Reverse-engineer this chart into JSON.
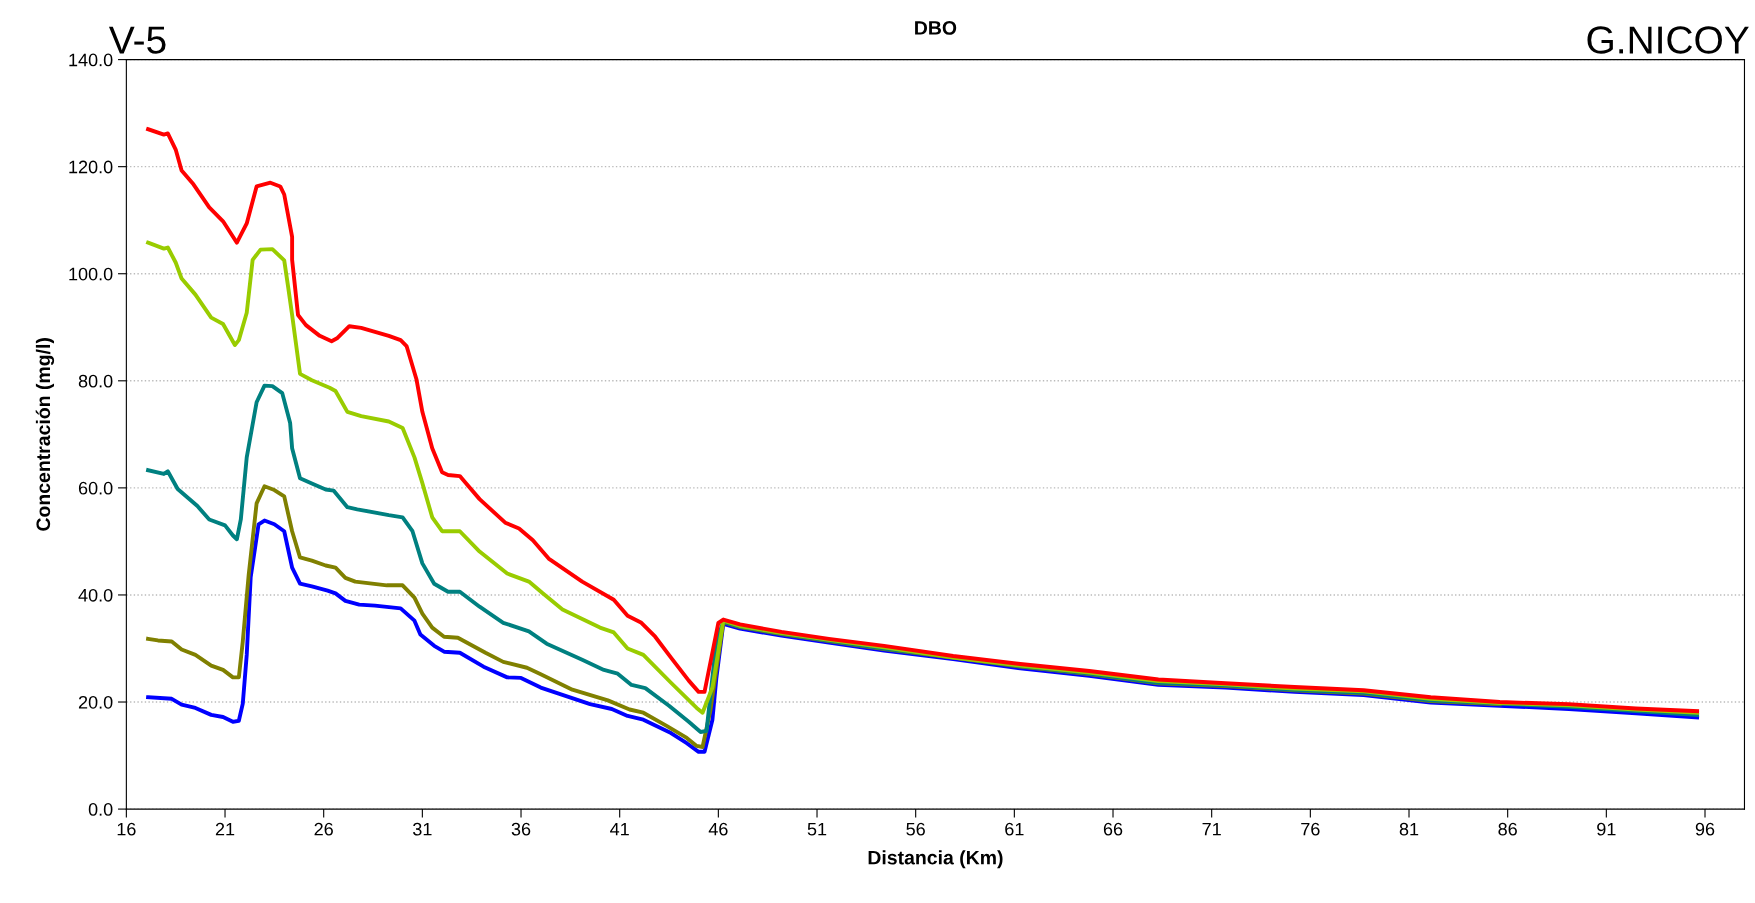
{
  "chart_data": {
    "type": "line",
    "title": "DBO",
    "xlabel": "Distancia (Km)",
    "ylabel": "Concentración (mg/l)",
    "annotations": [
      "V-5",
      "G.NICOY"
    ],
    "xlim": [
      16,
      98
    ],
    "xticks": [
      16,
      21,
      26,
      31,
      36,
      41,
      46,
      51,
      56,
      61,
      66,
      71,
      76,
      81,
      86,
      91,
      96
    ],
    "ylim": [
      0,
      140
    ],
    "yticks": [
      {
        "value": 0,
        "label": "0.0"
      },
      {
        "value": 20,
        "label": "20.0"
      },
      {
        "value": 40,
        "label": "40.0"
      },
      {
        "value": 60,
        "label": "60.0"
      },
      {
        "value": 80,
        "label": "80.0"
      },
      {
        "value": 100,
        "label": "100.0"
      },
      {
        "value": 120,
        "label": "120.0"
      },
      {
        "value": 140,
        "label": "140.0"
      }
    ],
    "grid": "y",
    "legend": false,
    "marker": "none",
    "line_style": "solid",
    "series": [
      {
        "color": "#0000ff",
        "x": [
          17.1,
          18.3,
          18.8,
          19.5,
          20.3,
          20.9,
          21.4,
          21.7,
          21.9,
          22.1,
          22.3,
          22.7,
          23.0,
          23.5,
          24.0,
          24.4,
          24.8,
          25.4,
          26.2,
          26.6,
          27.1,
          27.8,
          28.6,
          29.9,
          30.6,
          30.9,
          31.6,
          32.1,
          32.9,
          34.1,
          35.3,
          36.0,
          37.0,
          39.5,
          40.6,
          41.4,
          42.2,
          43.6,
          44.4,
          45.0,
          45.3,
          45.7,
          45.9,
          46.25,
          47.1,
          49.2,
          51.6,
          54.4,
          57.9,
          61.3,
          64.8,
          68.3,
          71.7,
          75.2,
          78.7,
          82.1,
          85.6,
          89.1,
          92.5,
          95.6
        ],
        "values": [
          20.9,
          20.6,
          19.5,
          18.9,
          17.6,
          17.2,
          16.3,
          16.5,
          19.7,
          28.8,
          43.3,
          53.2,
          53.9,
          53.2,
          51.9,
          45.1,
          42.1,
          41.6,
          40.8,
          40.3,
          38.9,
          38.2,
          38.0,
          37.5,
          35.2,
          32.6,
          30.5,
          29.4,
          29.2,
          26.6,
          24.6,
          24.5,
          22.7,
          19.6,
          18.7,
          17.4,
          16.7,
          14.2,
          12.3,
          10.7,
          10.7,
          16.7,
          24.5,
          34.6,
          33.7,
          32.4,
          31.1,
          29.6,
          28.0,
          26.3,
          24.9,
          23.2,
          22.7,
          21.9,
          21.3,
          19.9,
          19.3,
          18.7,
          17.9,
          17.1
        ]
      },
      {
        "color": "#808000",
        "x": [
          17.1,
          17.6,
          18.3,
          18.8,
          19.5,
          20.3,
          20.9,
          21.4,
          21.7,
          21.9,
          22.2,
          22.6,
          23.0,
          23.5,
          24.0,
          24.4,
          24.8,
          25.4,
          26.1,
          26.6,
          27.1,
          27.6,
          29.2,
          30.0,
          30.6,
          31.0,
          31.5,
          32.1,
          32.8,
          34.2,
          35.1,
          36.3,
          37.0,
          38.6,
          40.4,
          41.5,
          42.2,
          43.4,
          44.4,
          44.9,
          45.2,
          45.6,
          46.25,
          47.1,
          49.2,
          51.6,
          54.4,
          57.9,
          61.3,
          64.8,
          68.3,
          71.7,
          75.2,
          78.7,
          82.1,
          85.6
        ],
        "values": [
          31.8,
          31.5,
          31.3,
          29.8,
          28.8,
          26.8,
          26.0,
          24.6,
          24.6,
          31.3,
          43.8,
          57.1,
          60.3,
          59.6,
          58.4,
          51.9,
          47.0,
          46.4,
          45.5,
          45.1,
          43.2,
          42.5,
          41.8,
          41.8,
          39.5,
          36.5,
          33.9,
          32.2,
          32.0,
          29.2,
          27.5,
          26.4,
          25.2,
          22.3,
          20.3,
          18.6,
          18.0,
          15.5,
          13.3,
          11.8,
          11.6,
          18.5,
          34.9,
          34.0,
          32.7,
          31.4,
          29.9,
          28.3,
          26.6,
          25.2,
          23.5,
          23.0,
          22.2,
          21.6,
          20.2,
          19.6
        ]
      },
      {
        "color": "#008080",
        "x": [
          17.1,
          17.9,
          18.1,
          18.6,
          19.6,
          20.2,
          21.0,
          21.4,
          21.6,
          21.8,
          22.1,
          22.6,
          23.0,
          23.4,
          23.9,
          24.3,
          24.4,
          24.8,
          25.4,
          26.1,
          26.5,
          27.2,
          27.7,
          29.3,
          30.0,
          30.5,
          31.0,
          31.6,
          32.3,
          32.9,
          33.9,
          35.1,
          36.4,
          37.3,
          39.1,
          40.2,
          40.9,
          41.6,
          42.3,
          43.5,
          44.5,
          45.1,
          45.4,
          45.9,
          46.25,
          47.1,
          49.2,
          51.6,
          54.4,
          57.9,
          61.3,
          64.8,
          68.3,
          71.7,
          75.2,
          78.7,
          82.1,
          85.6,
          89.1,
          92.5,
          95.6
        ],
        "values": [
          63.3,
          62.6,
          63.1,
          59.8,
          56.6,
          54.1,
          53.0,
          51.1,
          50.4,
          54.1,
          65.7,
          76.0,
          79.1,
          79.0,
          77.7,
          72.1,
          67.4,
          61.8,
          60.8,
          59.7,
          59.5,
          56.4,
          56.0,
          54.9,
          54.5,
          51.9,
          45.9,
          42.1,
          40.6,
          40.6,
          37.8,
          34.8,
          33.2,
          30.9,
          27.9,
          26.0,
          25.3,
          23.2,
          22.6,
          19.3,
          16.3,
          14.4,
          14.6,
          31.3,
          35.0,
          34.1,
          32.8,
          31.5,
          30.0,
          28.4,
          26.7,
          25.3,
          23.6,
          23.1,
          22.3,
          21.7,
          20.3,
          19.7,
          19.1,
          18.3,
          17.6
        ]
      },
      {
        "color": "#99cc00",
        "x": [
          17.1,
          17.9,
          18.1,
          18.5,
          18.8,
          19.5,
          20.3,
          20.9,
          21.5,
          21.7,
          22.1,
          22.4,
          22.8,
          23.4,
          24.0,
          24.2,
          24.4,
          24.8,
          25.4,
          26.3,
          26.6,
          27.2,
          27.9,
          29.3,
          30.0,
          30.6,
          31.0,
          31.5,
          32.0,
          32.9,
          33.9,
          35.3,
          36.4,
          37.1,
          38.1,
          40.0,
          40.7,
          41.4,
          42.2,
          43.6,
          44.9,
          45.2,
          45.7,
          46.25,
          47.1,
          49.2,
          51.6,
          54.4,
          57.9,
          61.3,
          64.8,
          68.3,
          71.7,
          75.2,
          78.7,
          82.1,
          85.6,
          89.1,
          92.5,
          95.6
        ],
        "values": [
          105.8,
          104.7,
          104.9,
          102.1,
          99.1,
          96.1,
          91.8,
          90.6,
          86.7,
          87.6,
          92.7,
          102.6,
          104.5,
          104.6,
          102.5,
          97.5,
          92.3,
          81.3,
          80.1,
          78.7,
          78.1,
          74.2,
          73.4,
          72.4,
          71.2,
          65.7,
          60.9,
          54.5,
          51.9,
          51.9,
          48.1,
          44.0,
          42.5,
          40.3,
          37.3,
          33.9,
          33.0,
          30.0,
          28.8,
          23.6,
          18.9,
          18.0,
          22.7,
          35.2,
          34.2,
          32.9,
          31.6,
          30.2,
          28.3,
          26.8,
          25.5,
          23.9,
          23.3,
          22.5,
          22.0,
          20.6,
          19.8,
          19.4,
          18.6,
          18.0
        ]
      },
      {
        "color": "#ff0000",
        "x": [
          17.1,
          17.9,
          18.1,
          18.5,
          18.8,
          19.4,
          20.2,
          20.9,
          21.6,
          22.1,
          22.6,
          23.3,
          23.8,
          24.0,
          24.4,
          24.4,
          24.7,
          25.1,
          25.8,
          26.4,
          26.7,
          27.3,
          27.9,
          29.3,
          29.9,
          30.2,
          30.7,
          31.0,
          31.5,
          32.0,
          32.3,
          32.9,
          33.2,
          33.9,
          35.2,
          35.9,
          36.6,
          37.4,
          39.1,
          40.7,
          41.4,
          42.1,
          42.8,
          43.6,
          44.5,
          45.0,
          45.3,
          46.0,
          46.25,
          47.1,
          49.2,
          51.6,
          54.4,
          57.9,
          61.3,
          64.8,
          68.3,
          71.7,
          75.2,
          78.7,
          82.1,
          85.6,
          89.1,
          92.5,
          95.6
        ],
        "values": [
          127.0,
          126.0,
          126.2,
          123.2,
          119.3,
          116.7,
          112.4,
          109.8,
          105.8,
          109.4,
          116.3,
          117.0,
          116.3,
          114.8,
          106.9,
          102.6,
          92.3,
          90.4,
          88.4,
          87.4,
          88.0,
          90.2,
          89.9,
          88.4,
          87.6,
          86.5,
          80.3,
          74.2,
          67.4,
          62.9,
          62.4,
          62.2,
          60.9,
          57.9,
          53.5,
          52.4,
          50.2,
          46.8,
          42.5,
          39.1,
          36.1,
          34.8,
          32.2,
          28.3,
          24.0,
          21.9,
          21.9,
          34.8,
          35.4,
          34.5,
          33.1,
          31.8,
          30.5,
          28.6,
          27.1,
          25.8,
          24.2,
          23.5,
          22.8,
          22.2,
          20.9,
          20.0,
          19.6,
          18.8,
          18.3
        ]
      }
    ]
  }
}
